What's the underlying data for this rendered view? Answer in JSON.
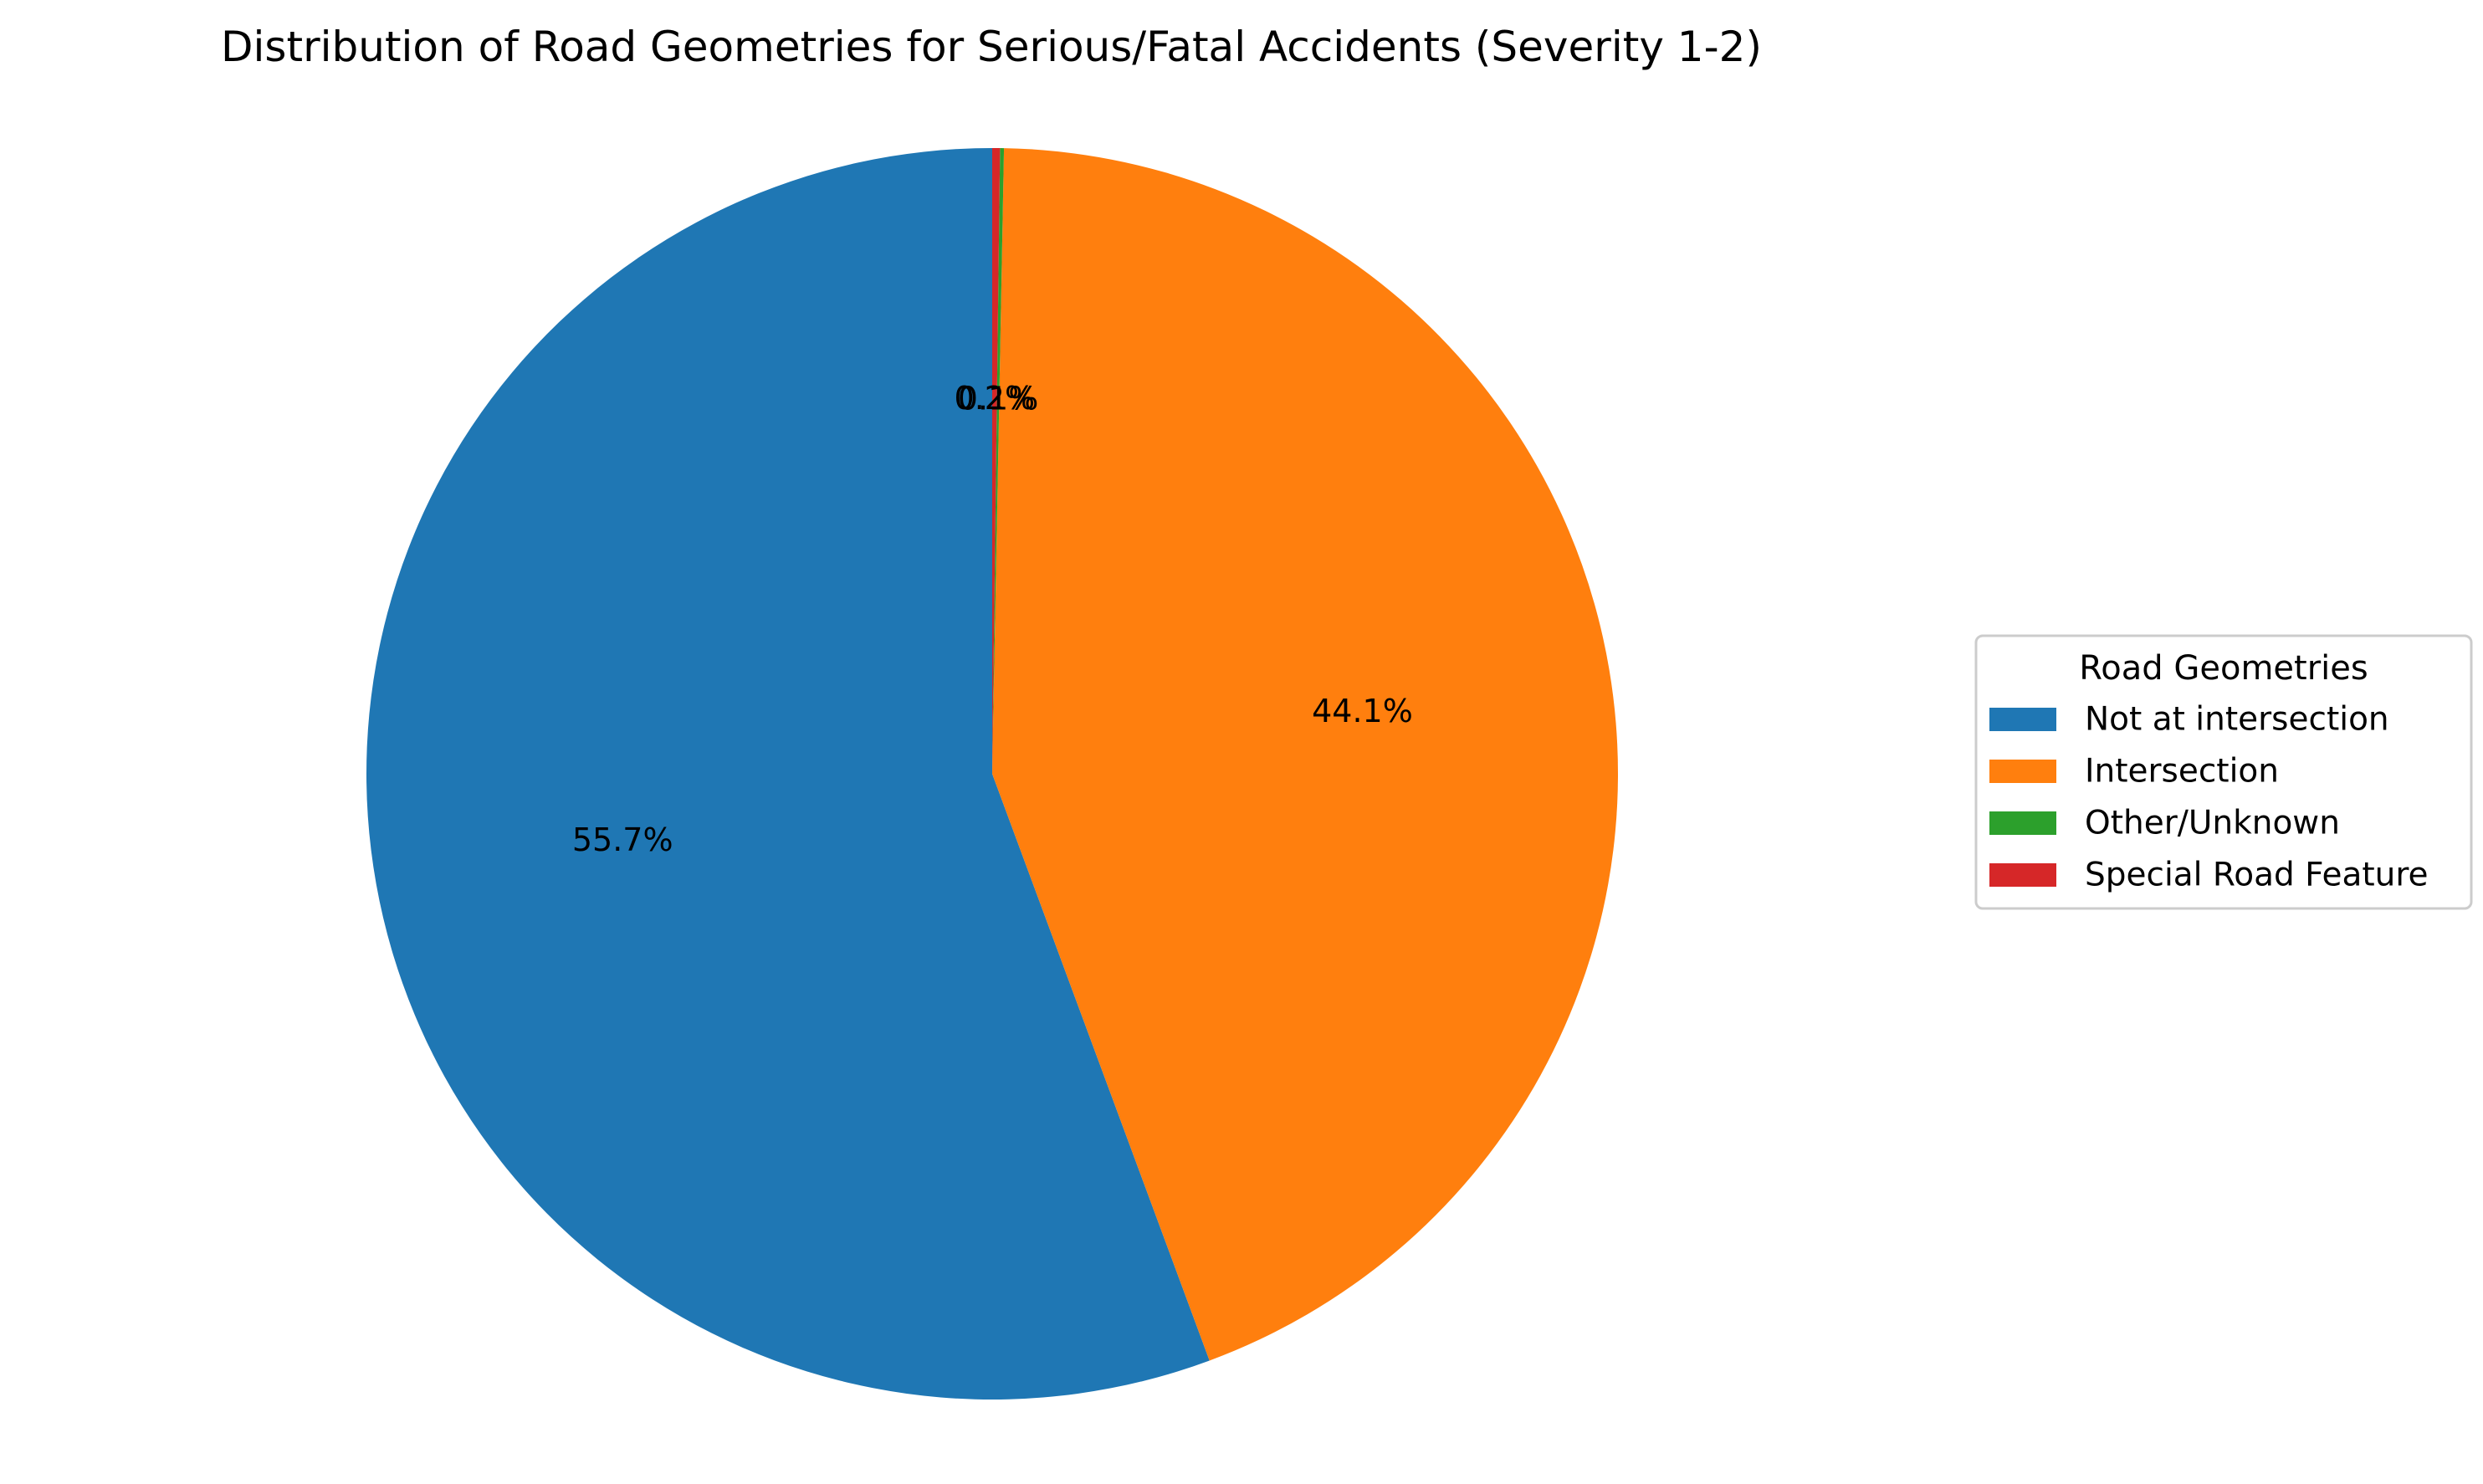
{
  "chart_data": {
    "type": "pie",
    "title": "Distribution of Road Geometries for Serious/Fatal Accidents (Severity 1-2)",
    "start_angle_deg": 90,
    "direction": "counterclockwise",
    "slices": [
      {
        "label": "Not at intersection",
        "value": 55.7,
        "pct_label": "55.7%",
        "color": "#1f77b4"
      },
      {
        "label": "Intersection",
        "value": 44.1,
        "pct_label": "44.1%",
        "color": "#ff7f0e"
      },
      {
        "label": "Other/Unknown",
        "value": 0.1,
        "pct_label": "0.1%",
        "color": "#2ca02c"
      },
      {
        "label": "Special Road Feature",
        "value": 0.2,
        "pct_label": "0.2%",
        "color": "#d62728"
      }
    ],
    "legend": {
      "title": "Road Geometries",
      "placement": "center-right"
    }
  }
}
